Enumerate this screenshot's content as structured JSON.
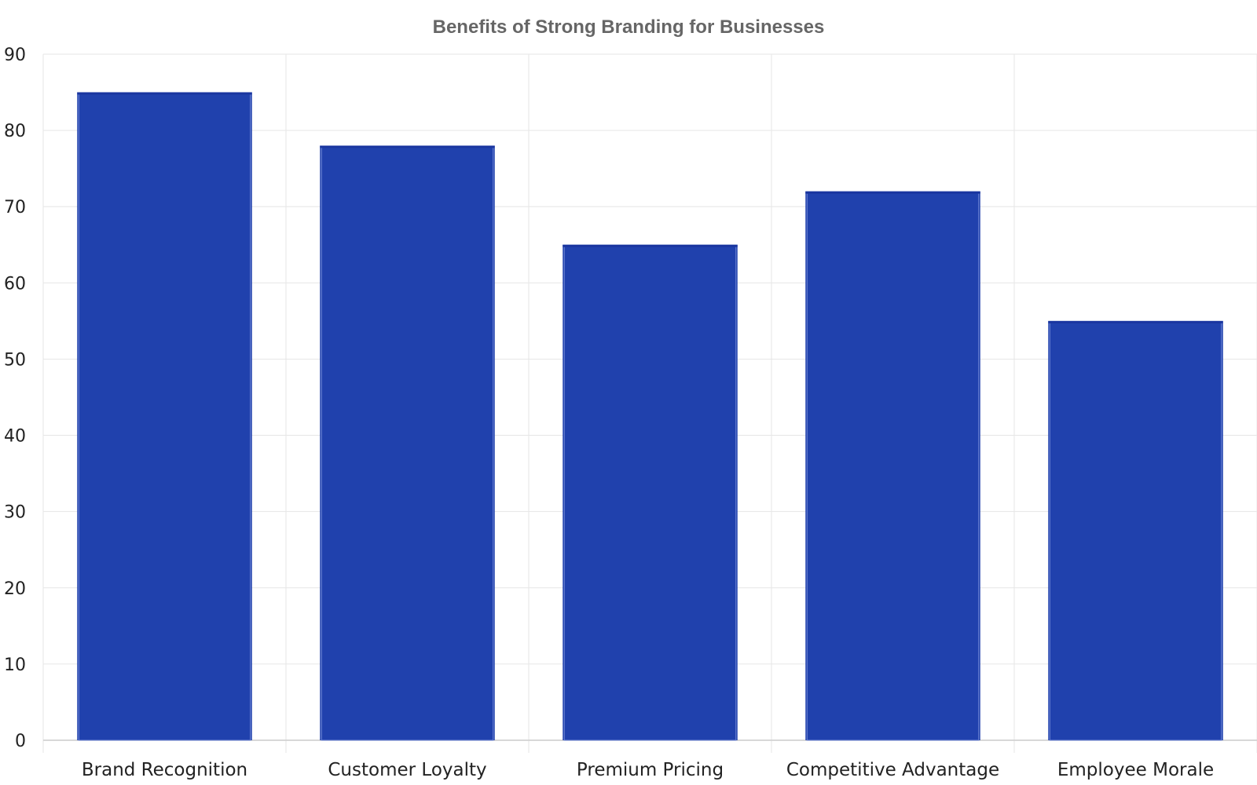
{
  "chart_data": {
    "type": "bar",
    "title": "Benefits of Strong Branding for Businesses",
    "categories": [
      "Brand Recognition",
      "Customer Loyalty",
      "Premium Pricing",
      "Competitive Advantage",
      "Employee Morale"
    ],
    "values": [
      85,
      78,
      65,
      72,
      55
    ],
    "xlabel": "",
    "ylabel": "",
    "ylim": [
      0,
      90
    ],
    "yticks": [
      0,
      10,
      20,
      30,
      40,
      50,
      60,
      70,
      80,
      90
    ],
    "grid": true,
    "legend": "none",
    "bar_color": "#2041ad",
    "bar_edge_color": "#6f86d6"
  }
}
